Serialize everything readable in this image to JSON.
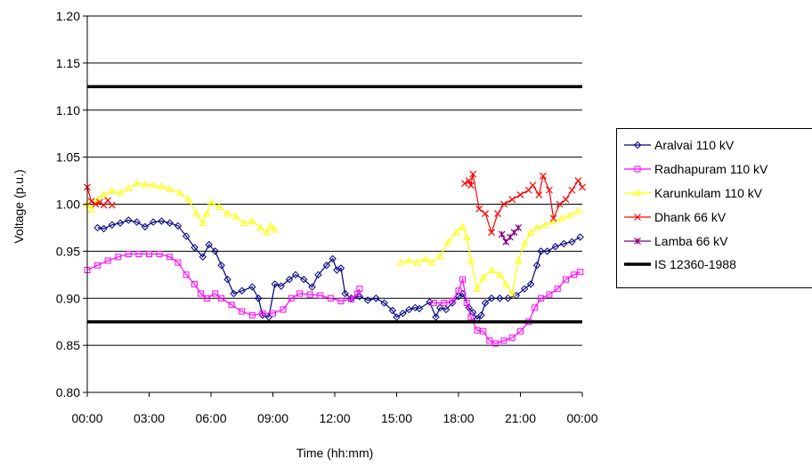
{
  "chart_data": {
    "type": "line",
    "title": "",
    "xlabel": "Time (hh:mm)",
    "ylabel": "Voltage (p.u.)",
    "xlim": [
      0,
      24
    ],
    "ylim": [
      0.8,
      1.2
    ],
    "x_ticks": [
      "00:00",
      "03:00",
      "06:00",
      "09:00",
      "12:00",
      "15:00",
      "18:00",
      "21:00",
      "00:00"
    ],
    "y_ticks": [
      "0.80",
      "0.85",
      "0.90",
      "0.95",
      "1.00",
      "1.05",
      "1.10",
      "1.15",
      "1.20"
    ],
    "grid": "horizontal",
    "legend_position": "right",
    "series": [
      {
        "name": "Aralvai 110 kV",
        "color": "#000080",
        "marker": "diamond",
        "points": [
          [
            0.5,
            0.975
          ],
          [
            0.8,
            0.974
          ],
          [
            1.2,
            0.978
          ],
          [
            1.6,
            0.98
          ],
          [
            2.0,
            0.983
          ],
          [
            2.4,
            0.981
          ],
          [
            2.8,
            0.976
          ],
          [
            3.2,
            0.981
          ],
          [
            3.6,
            0.982
          ],
          [
            4.0,
            0.98
          ],
          [
            4.4,
            0.977
          ],
          [
            4.8,
            0.966
          ],
          [
            5.2,
            0.954
          ],
          [
            5.6,
            0.944
          ],
          [
            5.9,
            0.957
          ],
          [
            6.2,
            0.95
          ],
          [
            6.5,
            0.935
          ],
          [
            6.8,
            0.92
          ],
          [
            7.1,
            0.905
          ],
          [
            7.5,
            0.908
          ],
          [
            8.0,
            0.912
          ],
          [
            8.3,
            0.9
          ],
          [
            8.5,
            0.882
          ],
          [
            8.8,
            0.88
          ],
          [
            9.1,
            0.915
          ],
          [
            9.4,
            0.913
          ],
          [
            9.8,
            0.92
          ],
          [
            10.1,
            0.925
          ],
          [
            10.5,
            0.92
          ],
          [
            10.9,
            0.912
          ],
          [
            11.2,
            0.925
          ],
          [
            11.6,
            0.935
          ],
          [
            11.9,
            0.942
          ],
          [
            12.1,
            0.93
          ],
          [
            12.3,
            0.932
          ],
          [
            12.5,
            0.905
          ],
          [
            12.8,
            0.9
          ],
          [
            13.2,
            0.902
          ],
          [
            13.6,
            0.898
          ],
          [
            14.0,
            0.9
          ],
          [
            14.4,
            0.895
          ],
          [
            14.8,
            0.887
          ],
          [
            15.0,
            0.88
          ],
          [
            15.3,
            0.884
          ],
          [
            15.6,
            0.888
          ],
          [
            15.9,
            0.89
          ],
          [
            16.1,
            0.889
          ],
          [
            16.6,
            0.896
          ],
          [
            16.9,
            0.88
          ],
          [
            17.1,
            0.89
          ],
          [
            17.4,
            0.888
          ],
          [
            17.7,
            0.895
          ],
          [
            18.0,
            0.902
          ],
          [
            18.2,
            0.905
          ],
          [
            18.5,
            0.89
          ],
          [
            18.7,
            0.885
          ],
          [
            18.9,
            0.878
          ],
          [
            19.1,
            0.882
          ],
          [
            19.3,
            0.895
          ],
          [
            19.6,
            0.9
          ],
          [
            20.0,
            0.9
          ],
          [
            20.4,
            0.9
          ],
          [
            20.8,
            0.903
          ],
          [
            21.2,
            0.91
          ],
          [
            21.5,
            0.915
          ],
          [
            21.8,
            0.935
          ],
          [
            22.0,
            0.95
          ],
          [
            22.3,
            0.95
          ],
          [
            22.7,
            0.955
          ],
          [
            23.1,
            0.958
          ],
          [
            23.5,
            0.96
          ],
          [
            23.9,
            0.965
          ]
        ]
      },
      {
        "name": "Radhapuram 110 kV",
        "color": "#ff00ff",
        "marker": "square",
        "points": [
          [
            0.0,
            0.93
          ],
          [
            0.5,
            0.935
          ],
          [
            1.0,
            0.94
          ],
          [
            1.5,
            0.944
          ],
          [
            2.0,
            0.947
          ],
          [
            2.5,
            0.947
          ],
          [
            3.0,
            0.947
          ],
          [
            3.5,
            0.947
          ],
          [
            4.0,
            0.944
          ],
          [
            4.4,
            0.938
          ],
          [
            4.8,
            0.925
          ],
          [
            5.2,
            0.915
          ],
          [
            5.5,
            0.905
          ],
          [
            5.8,
            0.9
          ],
          [
            6.2,
            0.905
          ],
          [
            6.5,
            0.9
          ],
          [
            7.0,
            0.893
          ],
          [
            7.5,
            0.886
          ],
          [
            8.0,
            0.882
          ],
          [
            8.5,
            0.884
          ],
          [
            9.0,
            0.884
          ],
          [
            9.5,
            0.888
          ],
          [
            9.9,
            0.9
          ],
          [
            10.3,
            0.905
          ],
          [
            10.8,
            0.904
          ],
          [
            11.3,
            0.903
          ],
          [
            11.8,
            0.9
          ],
          [
            12.3,
            0.897
          ],
          [
            12.8,
            0.899
          ],
          [
            13.1,
            0.905
          ],
          [
            13.2,
            0.91
          ],
          [
            16.8,
            0.895
          ],
          [
            17.3,
            0.895
          ],
          [
            17.7,
            0.897
          ],
          [
            18.0,
            0.908
          ],
          [
            18.2,
            0.92
          ],
          [
            18.4,
            0.895
          ],
          [
            18.6,
            0.88
          ],
          [
            18.9,
            0.866
          ],
          [
            19.2,
            0.865
          ],
          [
            19.5,
            0.855
          ],
          [
            19.8,
            0.852
          ],
          [
            20.2,
            0.855
          ],
          [
            20.6,
            0.858
          ],
          [
            21.0,
            0.865
          ],
          [
            21.4,
            0.875
          ],
          [
            21.7,
            0.89
          ],
          [
            22.0,
            0.9
          ],
          [
            22.4,
            0.904
          ],
          [
            22.8,
            0.91
          ],
          [
            23.2,
            0.92
          ],
          [
            23.6,
            0.925
          ],
          [
            23.9,
            0.928
          ]
        ]
      },
      {
        "name": "Karunkulam 110 kV",
        "color": "#ffff00",
        "marker": "triangle",
        "points": [
          [
            0.0,
            1.0
          ],
          [
            0.2,
            0.994
          ],
          [
            0.5,
            1.005
          ],
          [
            0.8,
            1.01
          ],
          [
            1.2,
            1.014
          ],
          [
            1.6,
            1.012
          ],
          [
            2.0,
            1.017
          ],
          [
            2.4,
            1.022
          ],
          [
            2.8,
            1.021
          ],
          [
            3.2,
            1.02
          ],
          [
            3.6,
            1.019
          ],
          [
            4.0,
            1.016
          ],
          [
            4.5,
            1.012
          ],
          [
            4.9,
            1.005
          ],
          [
            5.3,
            0.99
          ],
          [
            5.6,
            0.98
          ],
          [
            5.8,
            0.99
          ],
          [
            6.0,
            1.002
          ],
          [
            6.4,
            0.997
          ],
          [
            6.8,
            0.99
          ],
          [
            7.2,
            0.987
          ],
          [
            7.6,
            0.98
          ],
          [
            8.0,
            0.982
          ],
          [
            8.4,
            0.975
          ],
          [
            8.7,
            0.97
          ],
          [
            8.9,
            0.977
          ],
          [
            9.1,
            0.973
          ],
          [
            15.2,
            0.938
          ],
          [
            15.6,
            0.94
          ],
          [
            16.0,
            0.938
          ],
          [
            16.4,
            0.942
          ],
          [
            16.7,
            0.938
          ],
          [
            17.1,
            0.945
          ],
          [
            17.5,
            0.96
          ],
          [
            17.9,
            0.97
          ],
          [
            18.2,
            0.976
          ],
          [
            18.4,
            0.965
          ],
          [
            18.6,
            0.94
          ],
          [
            18.9,
            0.91
          ],
          [
            19.2,
            0.922
          ],
          [
            19.6,
            0.93
          ],
          [
            20.0,
            0.925
          ],
          [
            20.3,
            0.915
          ],
          [
            20.6,
            0.905
          ],
          [
            20.9,
            0.94
          ],
          [
            21.2,
            0.958
          ],
          [
            21.5,
            0.97
          ],
          [
            21.8,
            0.975
          ],
          [
            22.2,
            0.978
          ],
          [
            22.6,
            0.982
          ],
          [
            23.0,
            0.985
          ],
          [
            23.4,
            0.988
          ],
          [
            23.8,
            0.993
          ]
        ]
      },
      {
        "name": "Dhank 66 kV",
        "color": "#ff0000",
        "marker": "x",
        "points": [
          [
            0.0,
            1.018
          ],
          [
            0.2,
            1.003
          ],
          [
            0.4,
            1.0
          ],
          [
            0.6,
            1.002
          ],
          [
            0.8,
            0.999
          ],
          [
            1.0,
            1.004
          ],
          [
            1.2,
            0.999
          ],
          [
            18.3,
            1.022
          ],
          [
            18.5,
            1.025
          ],
          [
            18.6,
            1.02
          ],
          [
            18.7,
            1.032
          ],
          [
            19.0,
            0.995
          ],
          [
            19.3,
            0.99
          ],
          [
            19.6,
            0.97
          ],
          [
            19.9,
            0.99
          ],
          [
            20.2,
            1.0
          ],
          [
            20.6,
            1.005
          ],
          [
            21.0,
            1.01
          ],
          [
            21.4,
            1.015
          ],
          [
            21.6,
            1.02
          ],
          [
            21.9,
            1.01
          ],
          [
            22.1,
            1.03
          ],
          [
            22.4,
            1.015
          ],
          [
            22.6,
            0.985
          ],
          [
            22.9,
            1.0
          ],
          [
            23.2,
            1.005
          ],
          [
            23.5,
            1.015
          ],
          [
            23.8,
            1.025
          ],
          [
            24.0,
            1.018
          ]
        ]
      },
      {
        "name": "Lamba 66 kV",
        "color": "#800080",
        "marker": "star",
        "points": [
          [
            20.1,
            0.968
          ],
          [
            20.3,
            0.96
          ],
          [
            20.5,
            0.965
          ],
          [
            20.7,
            0.97
          ],
          [
            20.9,
            0.975
          ]
        ]
      },
      {
        "name": "IS 12360-1988",
        "color": "#000000",
        "marker": "none",
        "limits": [
          1.125,
          0.875
        ]
      }
    ]
  }
}
